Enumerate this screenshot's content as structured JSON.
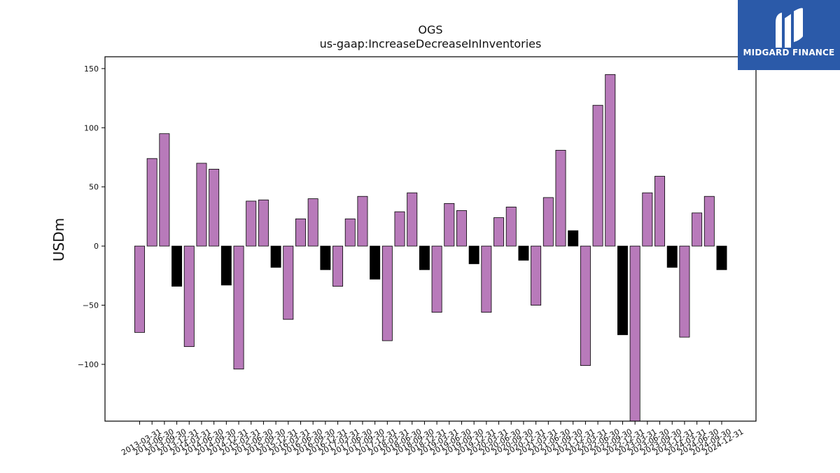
{
  "chart_data": {
    "type": "bar",
    "title": "OGS",
    "subtitle": "us-gaap:IncreaseDecreaseInInventories",
    "ylabel": "USDm",
    "xlabel": "",
    "ylim": [
      -148,
      160
    ],
    "yticks": [
      150,
      100,
      50,
      0,
      -50,
      -100
    ],
    "ytick_labels": [
      "150",
      "100",
      "50",
      "0",
      "−50",
      "−100"
    ],
    "categories": [
      "2013-03-31",
      "2013-06-30",
      "2013-09-30",
      "2013-12-31",
      "2014-03-31",
      "2014-06-30",
      "2014-09-30",
      "2014-12-31",
      "2015-03-31",
      "2015-06-30",
      "2015-09-30",
      "2015-12-31",
      "2016-03-31",
      "2016-06-30",
      "2016-09-30",
      "2016-12-31",
      "2017-03-31",
      "2017-06-30",
      "2017-09-30",
      "2017-12-31",
      "2018-03-31",
      "2018-06-30",
      "2018-09-30",
      "2018-12-31",
      "2019-03-31",
      "2019-06-30",
      "2019-09-30",
      "2019-12-31",
      "2020-03-31",
      "2020-06-30",
      "2020-09-30",
      "2020-12-31",
      "2021-03-31",
      "2021-06-30",
      "2021-09-30",
      "2021-12-31",
      "2022-03-31",
      "2022-06-30",
      "2022-09-30",
      "2022-12-31",
      "2023-03-31",
      "2023-06-30",
      "2023-09-30",
      "2023-12-31",
      "2024-03-31",
      "2024-06-30",
      "2024-09-30",
      "2024-12-31"
    ],
    "values": [
      -73,
      74,
      95,
      -34,
      -85,
      70,
      65,
      -33,
      -104,
      38,
      39,
      -18,
      -62,
      23,
      40,
      -20,
      -34,
      23,
      42,
      -28,
      -80,
      29,
      45,
      -20,
      -56,
      36,
      30,
      -15,
      -56,
      24,
      33,
      -12,
      -50,
      41,
      81,
      13,
      -101,
      119,
      145,
      -75,
      -148,
      45,
      59,
      -18,
      -77,
      28,
      42,
      -20
    ],
    "colors": [
      "#b87aba",
      "#b87aba",
      "#b87aba",
      "#000000",
      "#b87aba",
      "#b87aba",
      "#b87aba",
      "#000000",
      "#b87aba",
      "#b87aba",
      "#b87aba",
      "#000000",
      "#b87aba",
      "#b87aba",
      "#b87aba",
      "#000000",
      "#b87aba",
      "#b87aba",
      "#b87aba",
      "#000000",
      "#b87aba",
      "#b87aba",
      "#b87aba",
      "#000000",
      "#b87aba",
      "#b87aba",
      "#b87aba",
      "#000000",
      "#b87aba",
      "#b87aba",
      "#b87aba",
      "#000000",
      "#b87aba",
      "#b87aba",
      "#b87aba",
      "#000000",
      "#b87aba",
      "#b87aba",
      "#b87aba",
      "#000000",
      "#b87aba",
      "#b87aba",
      "#b87aba",
      "#000000",
      "#b87aba",
      "#b87aba",
      "#b87aba",
      "#000000"
    ],
    "grid": false,
    "legend": "none"
  },
  "logo": {
    "text": "MIDGARD FINANCE",
    "background": "#2b5aa9"
  }
}
